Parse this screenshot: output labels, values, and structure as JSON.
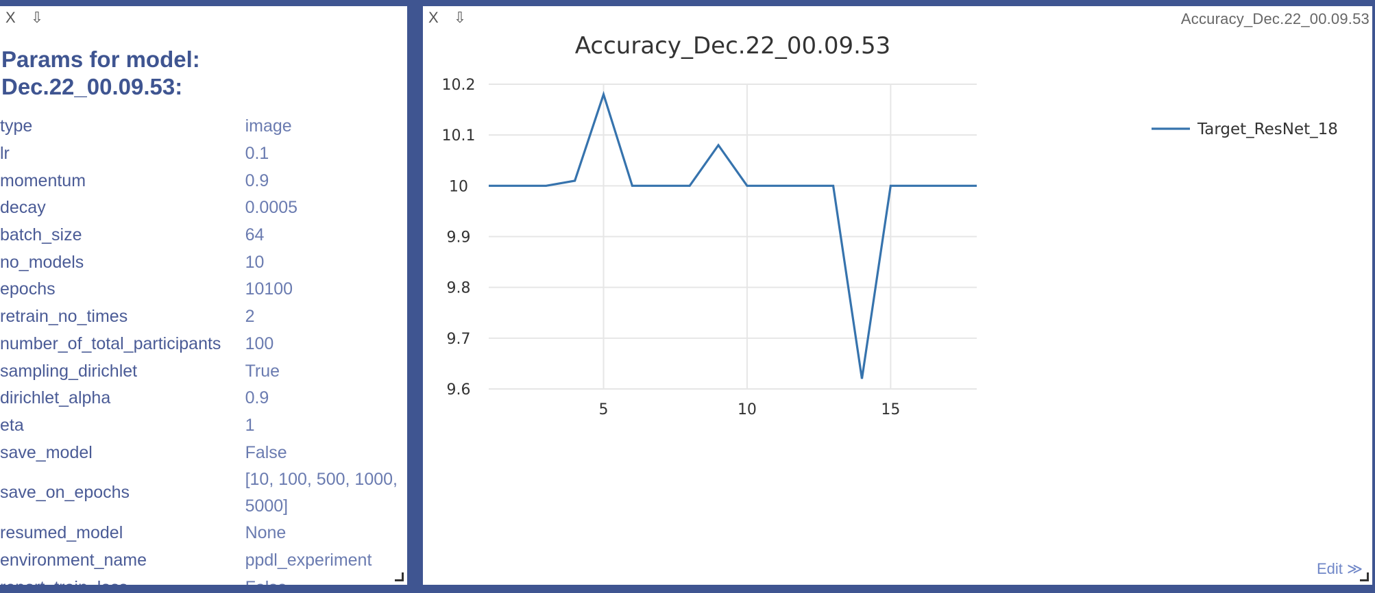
{
  "left_pane": {
    "tools": {
      "close": "X",
      "download": "⇩"
    },
    "heading_line1": "Params for model:",
    "heading_line2": "Dec.22_00.09.53:",
    "params": [
      {
        "key": "type",
        "value": "image"
      },
      {
        "key": "lr",
        "value": "0.1"
      },
      {
        "key": "momentum",
        "value": "0.9"
      },
      {
        "key": "decay",
        "value": "0.0005"
      },
      {
        "key": "batch_size",
        "value": "64"
      },
      {
        "key": "no_models",
        "value": "10"
      },
      {
        "key": "epochs",
        "value": "10100"
      },
      {
        "key": "retrain_no_times",
        "value": "2"
      },
      {
        "key": "number_of_total_participants",
        "value": "100"
      },
      {
        "key": "sampling_dirichlet",
        "value": "True"
      },
      {
        "key": "dirichlet_alpha",
        "value": "0.9"
      },
      {
        "key": "eta",
        "value": "1"
      },
      {
        "key": "save_model",
        "value": "False"
      },
      {
        "key": "save_on_epochs",
        "value": "[10, 100, 500, 1000, 5000]"
      },
      {
        "key": "resumed_model",
        "value": "None"
      },
      {
        "key": "environment_name",
        "value": "ppdl_experiment"
      },
      {
        "key": "report_train_loss",
        "value": "False"
      }
    ]
  },
  "right_pane": {
    "tools": {
      "close": "X",
      "download": "⇩"
    },
    "window_title": "Accuracy_Dec.22_00.09.53",
    "edit_label": "Edit ≫"
  },
  "chart_data": {
    "type": "line",
    "title": "Accuracy_Dec.22_00.09.53",
    "xlabel": "",
    "ylabel": "",
    "x": [
      1,
      2,
      3,
      4,
      5,
      6,
      7,
      8,
      9,
      10,
      11,
      12,
      13,
      14,
      15,
      16,
      17,
      18
    ],
    "series": [
      {
        "name": "Target_ResNet_18",
        "color": "#3673ad",
        "values": [
          10,
          10,
          10,
          10.01,
          10.18,
          10,
          10,
          10,
          10.08,
          10,
          10,
          10,
          10,
          9.62,
          10,
          10,
          10,
          10
        ]
      }
    ],
    "xlim": [
      1,
      18
    ],
    "ylim": [
      9.6,
      10.2
    ],
    "xticks": [
      5,
      10,
      15
    ],
    "yticks": [
      9.6,
      9.7,
      9.8,
      9.9,
      10,
      10.1,
      10.2
    ],
    "ytick_labels": [
      "9.6",
      "9.7",
      "9.8",
      "9.9",
      "10",
      "10.1",
      "10.2"
    ],
    "grid": true,
    "legend": "top-right"
  }
}
